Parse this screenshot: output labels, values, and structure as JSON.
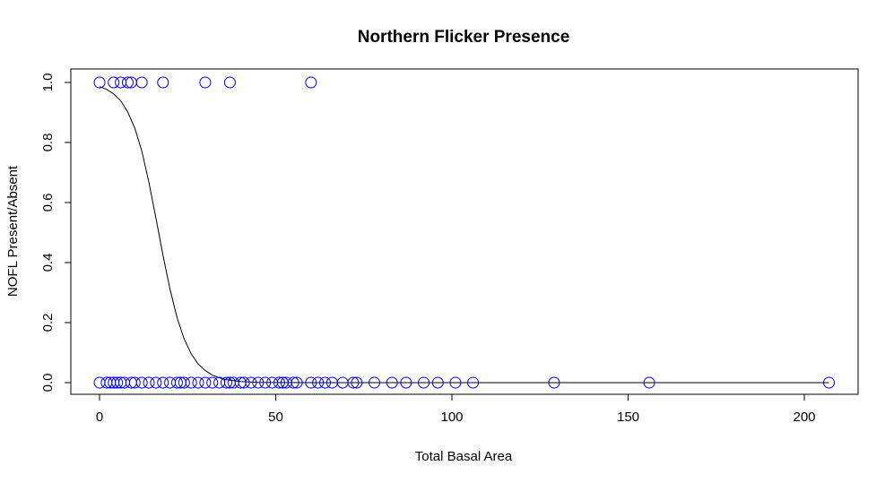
{
  "chart_data": {
    "type": "scatter",
    "title": "Northern Flicker Presence",
    "xlabel": "Total Basal Area",
    "ylabel": "NOFL Present/Absent",
    "xlim": [
      0,
      207
    ],
    "ylim": [
      0,
      1
    ],
    "xticks": [
      "0",
      "50",
      "100",
      "150",
      "200"
    ],
    "yticks": [
      "0.0",
      "0.2",
      "0.4",
      "0.6",
      "0.8",
      "1.0"
    ],
    "grid": false,
    "point_color": "#0000ff",
    "line_color": "#000000",
    "points": {
      "x": [
        0,
        4,
        6,
        8,
        9,
        12,
        18,
        30,
        37,
        60,
        0,
        2,
        3,
        4,
        5,
        6,
        7,
        9,
        10,
        12,
        14,
        16,
        18,
        20,
        22,
        23,
        24,
        26,
        28,
        30,
        32,
        34,
        36,
        37,
        38,
        40,
        41,
        43,
        45,
        47,
        49,
        51,
        52,
        53,
        55,
        56,
        60,
        62,
        64,
        66,
        69,
        72,
        73,
        78,
        83,
        87,
        92,
        96,
        101,
        106,
        129,
        156,
        207
      ],
      "y": [
        1,
        1,
        1,
        1,
        1,
        1,
        1,
        1,
        1,
        1,
        0,
        0,
        0,
        0,
        0,
        0,
        0,
        0,
        0,
        0,
        0,
        0,
        0,
        0,
        0,
        0,
        0,
        0,
        0,
        0,
        0,
        0,
        0,
        0,
        0,
        0,
        0,
        0,
        0,
        0,
        0,
        0,
        0,
        0,
        0,
        0,
        0,
        0,
        0,
        0,
        0,
        0,
        0,
        0,
        0,
        0,
        0,
        0,
        0,
        0,
        0,
        0,
        0
      ]
    },
    "fitted_curve": {
      "x": [
        0,
        2,
        4,
        6,
        8,
        10,
        12,
        14,
        16,
        18,
        20,
        22,
        24,
        26,
        28,
        30,
        32,
        34,
        36,
        38,
        40,
        45,
        50,
        60,
        80,
        100,
        150,
        207
      ],
      "y": [
        0.986,
        0.977,
        0.962,
        0.939,
        0.902,
        0.848,
        0.771,
        0.668,
        0.548,
        0.425,
        0.311,
        0.216,
        0.146,
        0.096,
        0.062,
        0.04,
        0.025,
        0.016,
        0.01,
        0.007,
        0.004,
        0.001,
        0.0003,
        2e-05,
        0,
        0,
        0,
        0
      ]
    }
  }
}
